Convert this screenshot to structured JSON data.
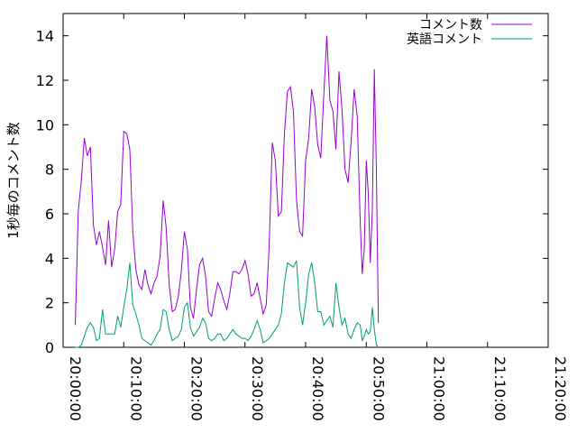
{
  "chart_data": {
    "type": "line",
    "xlabel": "",
    "ylabel": "1秒毎のコメント数",
    "xlim_seconds": [
      0,
      4800
    ],
    "x_tick_labels": [
      "20:00:00",
      "20:10:00",
      "20:20:00",
      "20:30:00",
      "20:40:00",
      "20:50:00",
      "21:00:00",
      "21:10:00",
      "21:20:00"
    ],
    "ylim": [
      0,
      15
    ],
    "y_ticks": [
      0,
      2,
      4,
      6,
      8,
      10,
      12,
      14
    ],
    "grid": false,
    "legend_position": "top-right",
    "series": [
      {
        "name": "コメント数",
        "color": "#9400d3",
        "points": [
          [
            120,
            1.0
          ],
          [
            150,
            6.1
          ],
          [
            180,
            7.5
          ],
          [
            210,
            9.4
          ],
          [
            240,
            8.6
          ],
          [
            270,
            9.0
          ],
          [
            300,
            5.5
          ],
          [
            330,
            4.6
          ],
          [
            360,
            5.2
          ],
          [
            390,
            4.5
          ],
          [
            420,
            3.7
          ],
          [
            450,
            5.7
          ],
          [
            480,
            3.6
          ],
          [
            510,
            4.4
          ],
          [
            540,
            6.1
          ],
          [
            570,
            6.4
          ],
          [
            600,
            9.7
          ],
          [
            630,
            9.6
          ],
          [
            660,
            8.9
          ],
          [
            690,
            5.2
          ],
          [
            720,
            3.5
          ],
          [
            750,
            2.8
          ],
          [
            780,
            2.6
          ],
          [
            810,
            3.5
          ],
          [
            840,
            2.8
          ],
          [
            870,
            2.4
          ],
          [
            900,
            2.9
          ],
          [
            930,
            3.2
          ],
          [
            960,
            4.1
          ],
          [
            990,
            6.6
          ],
          [
            1020,
            5.4
          ],
          [
            1050,
            2.8
          ],
          [
            1080,
            1.6
          ],
          [
            1110,
            1.7
          ],
          [
            1140,
            2.3
          ],
          [
            1170,
            3.4
          ],
          [
            1200,
            5.2
          ],
          [
            1230,
            4.4
          ],
          [
            1260,
            1.8
          ],
          [
            1290,
            1.3
          ],
          [
            1320,
            2.6
          ],
          [
            1350,
            3.7
          ],
          [
            1380,
            4.0
          ],
          [
            1410,
            3.2
          ],
          [
            1440,
            1.6
          ],
          [
            1470,
            1.4
          ],
          [
            1500,
            2.2
          ],
          [
            1530,
            2.9
          ],
          [
            1560,
            2.6
          ],
          [
            1590,
            2.1
          ],
          [
            1620,
            1.7
          ],
          [
            1650,
            2.4
          ],
          [
            1680,
            3.4
          ],
          [
            1710,
            3.4
          ],
          [
            1740,
            3.3
          ],
          [
            1770,
            3.5
          ],
          [
            1800,
            3.9
          ],
          [
            1830,
            3.3
          ],
          [
            1860,
            2.3
          ],
          [
            1890,
            2.4
          ],
          [
            1920,
            2.9
          ],
          [
            1950,
            2.2
          ],
          [
            1980,
            1.5
          ],
          [
            2010,
            1.9
          ],
          [
            2040,
            4.6
          ],
          [
            2070,
            9.2
          ],
          [
            2100,
            8.4
          ],
          [
            2130,
            5.9
          ],
          [
            2160,
            6.1
          ],
          [
            2190,
            9.6
          ],
          [
            2220,
            11.5
          ],
          [
            2250,
            11.7
          ],
          [
            2280,
            10.6
          ],
          [
            2310,
            6.6
          ],
          [
            2340,
            5.2
          ],
          [
            2370,
            5.0
          ],
          [
            2400,
            8.4
          ],
          [
            2430,
            9.4
          ],
          [
            2460,
            11.6
          ],
          [
            2490,
            10.8
          ],
          [
            2520,
            9.1
          ],
          [
            2550,
            8.5
          ],
          [
            2580,
            11.4
          ],
          [
            2610,
            14.0
          ],
          [
            2640,
            11.1
          ],
          [
            2670,
            10.6
          ],
          [
            2700,
            8.9
          ],
          [
            2730,
            12.4
          ],
          [
            2760,
            10.7
          ],
          [
            2790,
            8.0
          ],
          [
            2820,
            7.4
          ],
          [
            2850,
            9.2
          ],
          [
            2880,
            11.6
          ],
          [
            2910,
            10.4
          ],
          [
            2940,
            5.7
          ],
          [
            2960,
            3.3
          ],
          [
            2980,
            4.4
          ],
          [
            3000,
            8.4
          ],
          [
            3020,
            6.9
          ],
          [
            3040,
            3.8
          ],
          [
            3060,
            6.2
          ],
          [
            3080,
            12.5
          ],
          [
            3100,
            7.9
          ],
          [
            3120,
            1.1
          ]
        ]
      },
      {
        "name": "英語コメント",
        "color": "#009e73",
        "points": [
          [
            120,
            0.0
          ],
          [
            150,
            0.0
          ],
          [
            180,
            0.1
          ],
          [
            210,
            0.5
          ],
          [
            240,
            0.9
          ],
          [
            270,
            1.1
          ],
          [
            300,
            0.9
          ],
          [
            330,
            0.3
          ],
          [
            360,
            0.4
          ],
          [
            390,
            1.7
          ],
          [
            420,
            0.6
          ],
          [
            450,
            0.6
          ],
          [
            480,
            0.6
          ],
          [
            510,
            0.6
          ],
          [
            540,
            1.4
          ],
          [
            570,
            0.9
          ],
          [
            600,
            1.8
          ],
          [
            630,
            2.6
          ],
          [
            660,
            3.8
          ],
          [
            690,
            1.9
          ],
          [
            720,
            1.5
          ],
          [
            750,
            1.0
          ],
          [
            780,
            0.4
          ],
          [
            810,
            0.3
          ],
          [
            840,
            0.2
          ],
          [
            870,
            0.1
          ],
          [
            900,
            0.3
          ],
          [
            930,
            0.6
          ],
          [
            960,
            0.8
          ],
          [
            990,
            1.7
          ],
          [
            1020,
            1.6
          ],
          [
            1050,
            0.8
          ],
          [
            1080,
            0.3
          ],
          [
            1110,
            0.4
          ],
          [
            1140,
            0.5
          ],
          [
            1170,
            0.8
          ],
          [
            1200,
            1.8
          ],
          [
            1230,
            2.0
          ],
          [
            1260,
            0.9
          ],
          [
            1290,
            0.5
          ],
          [
            1320,
            0.7
          ],
          [
            1350,
            0.9
          ],
          [
            1380,
            1.3
          ],
          [
            1410,
            1.1
          ],
          [
            1440,
            0.4
          ],
          [
            1470,
            0.3
          ],
          [
            1500,
            0.4
          ],
          [
            1530,
            0.6
          ],
          [
            1560,
            0.6
          ],
          [
            1590,
            0.3
          ],
          [
            1620,
            0.4
          ],
          [
            1650,
            0.6
          ],
          [
            1680,
            0.8
          ],
          [
            1710,
            0.6
          ],
          [
            1740,
            0.5
          ],
          [
            1770,
            0.4
          ],
          [
            1800,
            0.4
          ],
          [
            1830,
            0.3
          ],
          [
            1860,
            0.5
          ],
          [
            1890,
            0.8
          ],
          [
            1920,
            1.2
          ],
          [
            1950,
            0.8
          ],
          [
            1980,
            0.2
          ],
          [
            2010,
            0.3
          ],
          [
            2040,
            0.4
          ],
          [
            2070,
            0.6
          ],
          [
            2100,
            0.8
          ],
          [
            2130,
            1.0
          ],
          [
            2160,
            1.5
          ],
          [
            2190,
            2.9
          ],
          [
            2220,
            3.8
          ],
          [
            2250,
            3.7
          ],
          [
            2280,
            3.6
          ],
          [
            2310,
            3.9
          ],
          [
            2340,
            1.8
          ],
          [
            2370,
            1.0
          ],
          [
            2400,
            2.0
          ],
          [
            2430,
            3.3
          ],
          [
            2460,
            3.8
          ],
          [
            2490,
            2.9
          ],
          [
            2520,
            1.6
          ],
          [
            2550,
            1.6
          ],
          [
            2580,
            1.0
          ],
          [
            2610,
            1.2
          ],
          [
            2640,
            1.4
          ],
          [
            2670,
            0.9
          ],
          [
            2700,
            2.9
          ],
          [
            2730,
            1.8
          ],
          [
            2760,
            1.0
          ],
          [
            2790,
            1.3
          ],
          [
            2820,
            0.6
          ],
          [
            2850,
            0.4
          ],
          [
            2880,
            0.8
          ],
          [
            2910,
            1.1
          ],
          [
            2940,
            1.0
          ],
          [
            2960,
            0.3
          ],
          [
            2980,
            0.5
          ],
          [
            3000,
            0.8
          ],
          [
            3020,
            0.6
          ],
          [
            3040,
            0.7
          ],
          [
            3060,
            1.8
          ],
          [
            3080,
            0.8
          ],
          [
            3100,
            0.1
          ],
          [
            3120,
            0.0
          ]
        ]
      }
    ]
  }
}
